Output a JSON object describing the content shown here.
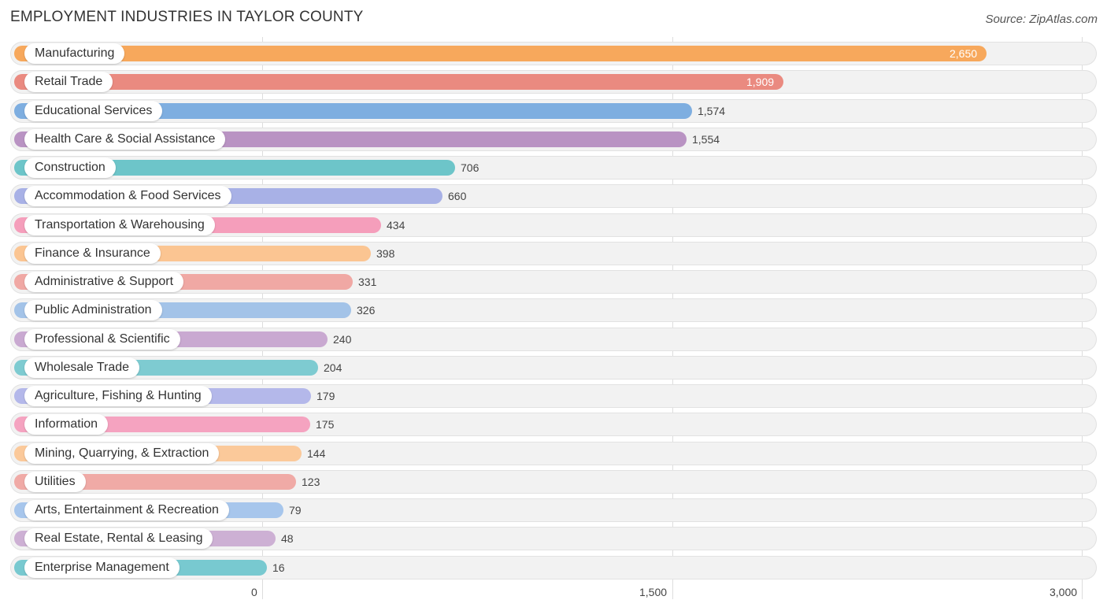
{
  "chart_data": {
    "type": "bar",
    "orientation": "horizontal",
    "title": "EMPLOYMENT INDUSTRIES IN TAYLOR COUNTY",
    "source": "Source: ZipAtlas.com",
    "xlim": [
      0,
      3000
    ],
    "ticks": [
      {
        "value": 0,
        "label": "0"
      },
      {
        "value": 1500,
        "label": "1,500"
      },
      {
        "value": 3000,
        "label": "3,000"
      }
    ],
    "grid": true,
    "bars": [
      {
        "category": "Manufacturing",
        "value": 2650,
        "label": "2,650",
        "color": "#f7a85c"
      },
      {
        "category": "Retail Trade",
        "value": 1909,
        "label": "1,909",
        "color": "#ea8a80"
      },
      {
        "category": "Educational Services",
        "value": 1574,
        "label": "1,574",
        "color": "#7eaee0"
      },
      {
        "category": "Health Care & Social Assistance",
        "value": 1554,
        "label": "1,554",
        "color": "#b993c3"
      },
      {
        "category": "Construction",
        "value": 706,
        "label": "706",
        "color": "#6dc5c9"
      },
      {
        "category": "Accommodation & Food Services",
        "value": 660,
        "label": "660",
        "color": "#a8b1e6"
      },
      {
        "category": "Transportation & Warehousing",
        "value": 434,
        "label": "434",
        "color": "#f59ebb"
      },
      {
        "category": "Finance & Insurance",
        "value": 398,
        "label": "398",
        "color": "#fbc592"
      },
      {
        "category": "Administrative & Support",
        "value": 331,
        "label": "331",
        "color": "#f0a8a4"
      },
      {
        "category": "Public Administration",
        "value": 326,
        "label": "326",
        "color": "#a3c3e8"
      },
      {
        "category": "Professional & Scientific",
        "value": 240,
        "label": "240",
        "color": "#c9a9d1"
      },
      {
        "category": "Wholesale Trade",
        "value": 204,
        "label": "204",
        "color": "#7ecbd1"
      },
      {
        "category": "Agriculture, Fishing & Hunting",
        "value": 179,
        "label": "179",
        "color": "#b4b8ea"
      },
      {
        "category": "Information",
        "value": 175,
        "label": "175",
        "color": "#f5a3c0"
      },
      {
        "category": "Mining, Quarrying, & Extraction",
        "value": 144,
        "label": "144",
        "color": "#fbc99a"
      },
      {
        "category": "Utilities",
        "value": 123,
        "label": "123",
        "color": "#f0aaa6"
      },
      {
        "category": "Arts, Entertainment & Recreation",
        "value": 79,
        "label": "79",
        "color": "#a7c6ec"
      },
      {
        "category": "Real Estate, Rental & Leasing",
        "value": 48,
        "label": "48",
        "color": "#cdb0d4"
      },
      {
        "category": "Enterprise Management",
        "value": 16,
        "label": "16",
        "color": "#78c9d0"
      }
    ]
  }
}
